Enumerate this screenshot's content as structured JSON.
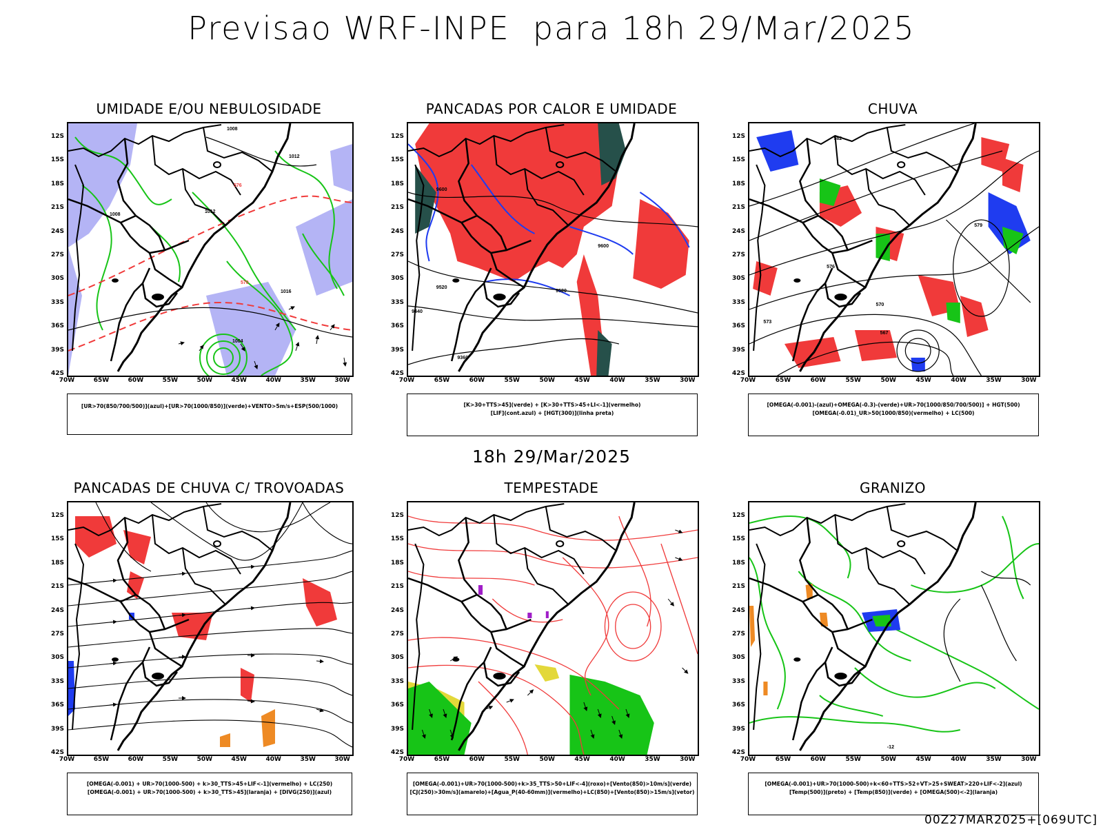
{
  "title": "Previsao WRF-INPE  para 18h 29/Mar/2025",
  "subtitle": "18h 29/Mar/2025",
  "footer": "00Z27MAR2025+[069UTC]",
  "axes": {
    "lat_labels": [
      "12S",
      "15S",
      "18S",
      "21S",
      "24S",
      "27S",
      "30S",
      "33S",
      "36S",
      "39S",
      "42S"
    ],
    "lon_labels": [
      "70W",
      "65W",
      "60W",
      "55W",
      "50W",
      "45W",
      "40W",
      "35W",
      "30W"
    ]
  },
  "colors": {
    "red": "#f03a3a",
    "green": "#17c417",
    "blue": "#1f3cf0",
    "lavender": "#b4b4f5",
    "dark_teal": "#26504a",
    "yellow": "#e3d83a",
    "orange": "#ee8a24",
    "purple": "#a01ec8"
  },
  "panels": [
    {
      "title": "UMIDADE E/OU NEBULOSIDADE",
      "legend": [
        "[UR>70(850/700/500)](azul)+[UR>70(1000/850)](verde)+VENTO>5m/s+ESP(500/1000)"
      ],
      "contour_labels": [
        "1008",
        "1012",
        "1016",
        "1012",
        "1008",
        "1004",
        "576",
        "570"
      ]
    },
    {
      "title": "PANCADAS POR CALOR E UMIDADE",
      "legend": [
        "[K>30+TTS>45](verde) + [K>30+TTS>45+LI<-1](vermelho)",
        "[LIF](cont.azul) + [HGT(300)](linha preta)"
      ],
      "contour_labels": [
        "9600",
        "9520",
        "9440",
        "9360",
        "9600",
        "9520"
      ]
    },
    {
      "title": "CHUVA",
      "legend": [
        "[OMEGA(-0.001)-(azul)+OMEGA(-0.3)-(verde)+UR>70(1000/850/700/500)] + HGT(500)",
        "[OMEGA(-0.01)_UR>50(1000/850)(vermelho) + LC(500)"
      ],
      "contour_labels": [
        "582",
        "576",
        "570",
        "567",
        "573",
        "579"
      ]
    },
    {
      "title": "PANCADAS DE CHUVA C/ TROVOADAS",
      "legend": [
        "[OMEGA(-0.001) + UR>70(1000-500) + k>30_TTS>45+LIF<-1](vermelho) + LC(250)",
        "[OMEGA(-0.001) + UR>70(1000-500) + k>30_TTS>45](laranja) + [DIVG(250)](azul)"
      ],
      "contour_labels": []
    },
    {
      "title": "TEMPESTADE",
      "legend": [
        "[OMEGA(-0.001)+UR>70(1000-500)+k>35_TTS>50+LIF<-4](roxo)+[Vento(850)>10m/s](verde)",
        "[CJ(250)>30m/s](amarelo)+[Agua_P(40-60mm)](vermelho)+LC(850)+[Vento(850)>15m/s](vetor)"
      ],
      "contour_labels": []
    },
    {
      "title": "GRANIZO",
      "legend": [
        "[OMEGA(-0.001)+UR>70(1000-500)+k<60+TTS>52+VT>25+SWEAT>220+LIF<-2](azul)",
        "[Temp(500)](preto) + [Temp(850)](verde) + [OMEGA(500)<-2](laranja)"
      ],
      "contour_labels": [
        "-12"
      ]
    }
  ]
}
